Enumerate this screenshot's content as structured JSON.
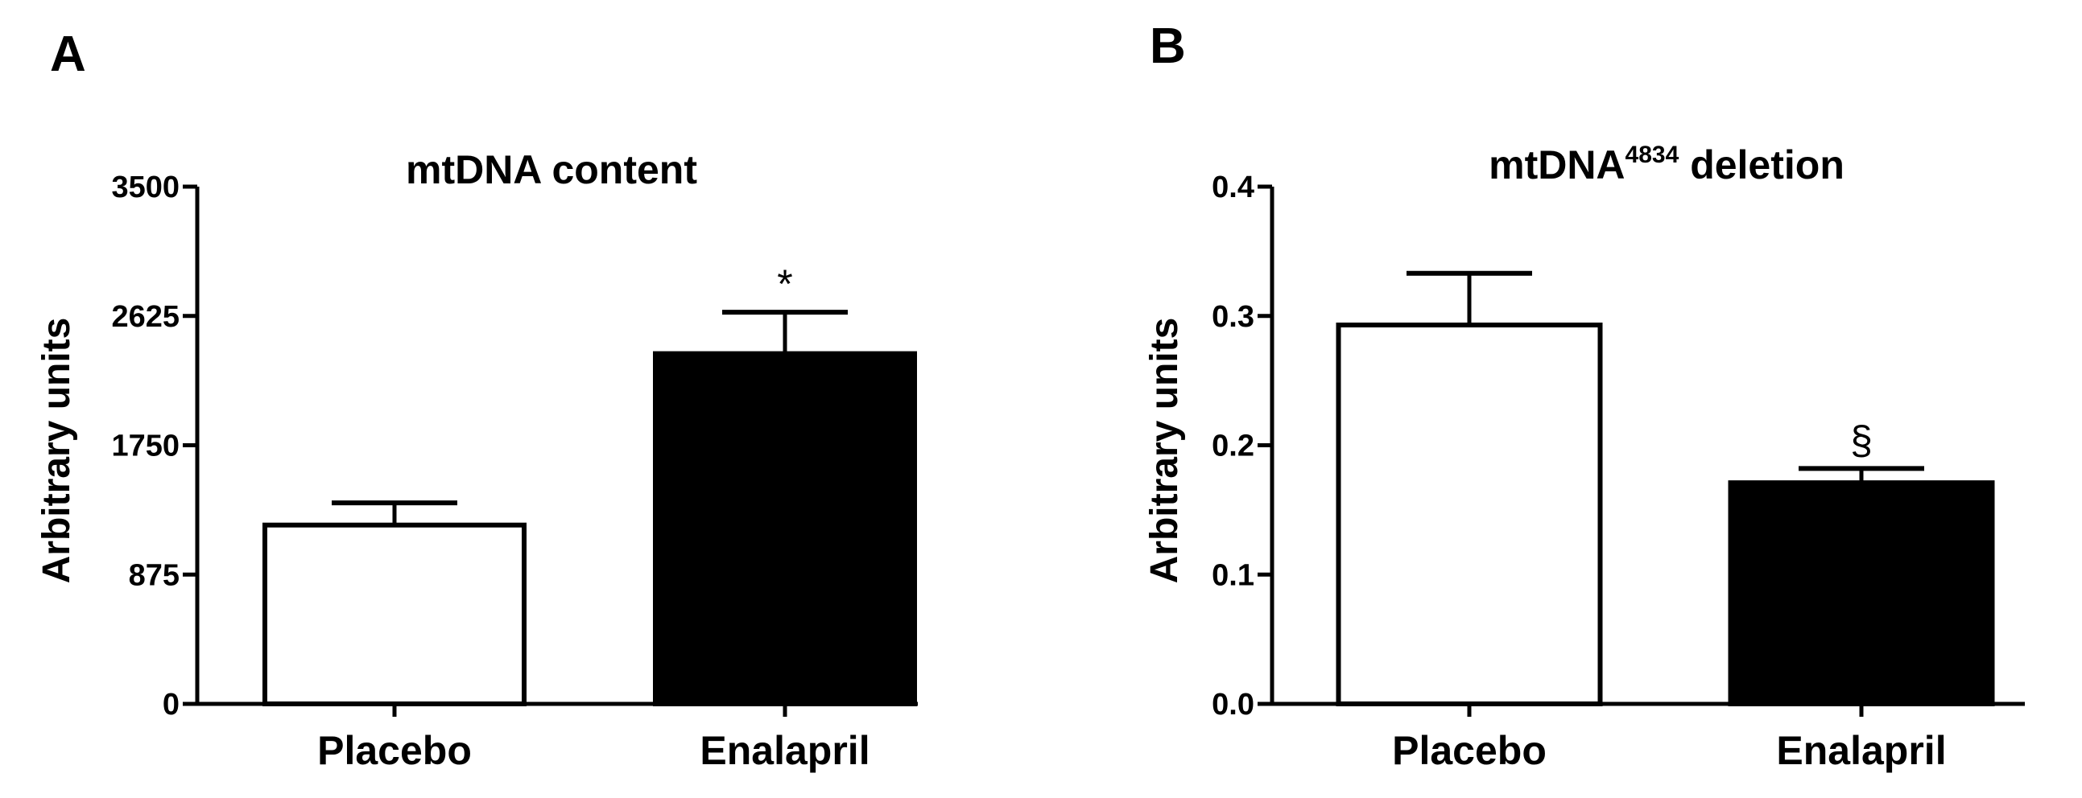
{
  "chart_data": [
    {
      "panel": "A",
      "type": "bar",
      "title": "mtDNA content",
      "ylabel": "Arbitrary units",
      "xlabel": "",
      "ylim": [
        0,
        3500
      ],
      "yticks": [
        0,
        875,
        1750,
        2625,
        3500
      ],
      "ytick_labels": [
        "0",
        "875",
        "1750",
        "2625",
        "3500"
      ],
      "categories": [
        "Placebo",
        "Enalapril"
      ],
      "values": [
        1210,
        2370
      ],
      "errors": [
        150,
        280
      ],
      "bar_fills": [
        "#ffffff",
        "#000000"
      ],
      "annotations": [
        "",
        "*"
      ],
      "grid": false,
      "legend": "none"
    },
    {
      "panel": "B",
      "type": "bar",
      "title": "mtDNA",
      "title_superscript": "4834",
      "title_suffix": " deletion",
      "ylabel": "Arbitrary units",
      "xlabel": "",
      "ylim": [
        0,
        0.4
      ],
      "yticks": [
        0,
        0.1,
        0.2,
        0.3,
        0.4
      ],
      "ytick_labels": [
        "0.0",
        "0.1",
        "0.2",
        "0.3",
        "0.4"
      ],
      "categories": [
        "Placebo",
        "Enalapril"
      ],
      "values": [
        0.293,
        0.171
      ],
      "errors": [
        0.04,
        0.011
      ],
      "bar_fills": [
        "#ffffff",
        "#000000"
      ],
      "annotations": [
        "",
        "§"
      ],
      "grid": false,
      "legend": "none"
    }
  ]
}
